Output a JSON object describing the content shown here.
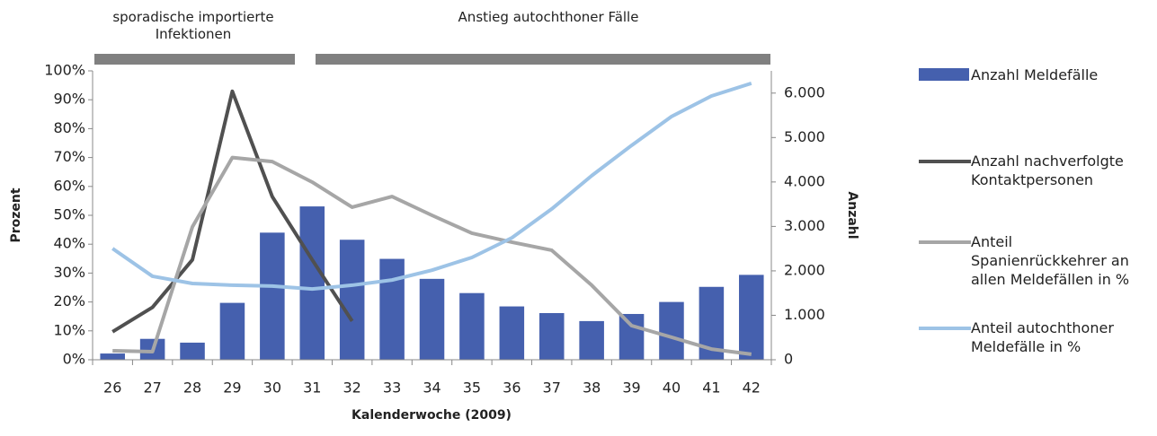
{
  "chart_data": {
    "type": "bar-line",
    "annotations": [
      "sporadische importierte Infektionen",
      "Anstieg autochthoner Fälle"
    ],
    "xlabel": "Kalenderwoche (2009)",
    "ylabel": "Prozent",
    "y2label": "Anzahl",
    "categories": [
      "26",
      "27",
      "28",
      "29",
      "30",
      "31",
      "32",
      "33",
      "34",
      "35",
      "36",
      "37",
      "38",
      "39",
      "40",
      "41",
      "42"
    ],
    "ylim": [
      0,
      100
    ],
    "yticks": [
      {
        "value": 0,
        "label": "0%"
      },
      {
        "value": 10,
        "label": "10%"
      },
      {
        "value": 20,
        "label": "20%"
      },
      {
        "value": 30,
        "label": "30%"
      },
      {
        "value": 40,
        "label": "40%"
      },
      {
        "value": 50,
        "label": "50%"
      },
      {
        "value": 60,
        "label": "60%"
      },
      {
        "value": 70,
        "label": "70%"
      },
      {
        "value": 80,
        "label": "80%"
      },
      {
        "value": 90,
        "label": "90%"
      },
      {
        "value": 100,
        "label": "100%"
      }
    ],
    "y2lim": [
      0,
      6500
    ],
    "y2ticks": [
      0,
      {
        "value": 1000,
        "label": "1.000"
      },
      {
        "value": 2000,
        "label": "2.000"
      },
      {
        "value": 3000,
        "label": "3.000"
      },
      {
        "value": 4000,
        "label": "4.000"
      },
      {
        "value": 5000,
        "label": "5.000"
      },
      {
        "value": 6000,
        "label": "6.000"
      }
    ],
    "series": [
      {
        "name": "Anzahl Meldefälle",
        "type": "bar",
        "axis": "y2",
        "color": "#4560ae",
        "values": [
          140,
          470,
          385,
          1280,
          2860,
          3450,
          2700,
          2270,
          1820,
          1500,
          1200,
          1050,
          870,
          1030,
          1300,
          1640,
          1910
        ]
      },
      {
        "name": "Anzahl nachverfolgte Kontaktpersonen",
        "type": "line",
        "axis": "y2",
        "color": "#505050",
        "values": [
          630,
          1180,
          2250,
          6040,
          3670,
          2250,
          870,
          null,
          null,
          null,
          null,
          null,
          null,
          null,
          null,
          null,
          null
        ]
      },
      {
        "name": "Anteil Spanienrückkehrer an allen Meldefällen in %",
        "type": "line",
        "color": "#a6a6a6",
        "values": [
          3.1,
          2.8,
          46,
          70,
          68.6,
          61.5,
          52.8,
          56.5,
          50,
          43.8,
          40.7,
          37.9,
          25.8,
          11.8,
          7.8,
          3.7,
          1.9
        ]
      },
      {
        "name": "Anteil autochthoner Meldefälle in %",
        "type": "line",
        "color": "#9dc3e6",
        "values": [
          38.5,
          28.9,
          26.4,
          25.8,
          25.5,
          24.5,
          25.8,
          27.6,
          31,
          35.4,
          42.2,
          52.2,
          63.7,
          74.2,
          84.2,
          91.3,
          95.7
        ]
      }
    ]
  }
}
